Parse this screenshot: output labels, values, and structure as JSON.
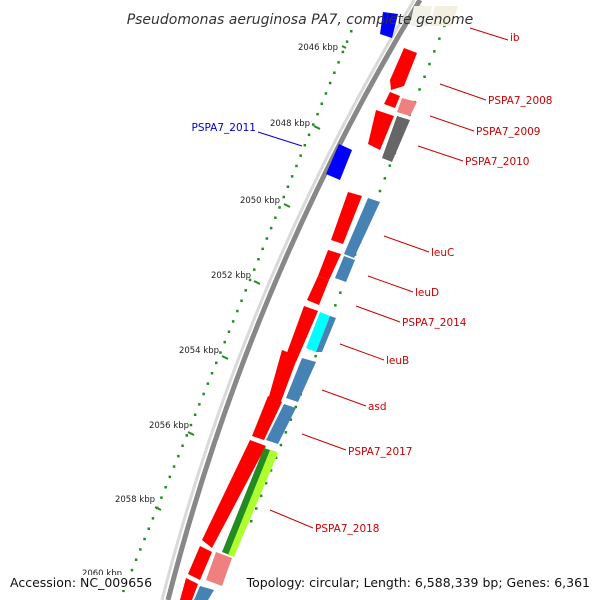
{
  "title": "Pseudomonas aeruginosa PA7, complete genome",
  "accession_text": "Accession: NC_009656",
  "summary_text": "Topology: circular; Length: 6,588,339 bp; Genes: 6,361",
  "ticks": [
    {
      "label": "2046 kbp"
    },
    {
      "label": "2048 kbp"
    },
    {
      "label": "2050 kbp"
    },
    {
      "label": "2052 kbp"
    },
    {
      "label": "2054 kbp"
    },
    {
      "label": "2056 kbp"
    },
    {
      "label": "2058 kbp"
    },
    {
      "label": "2060 kbp"
    }
  ],
  "gene_labels": [
    {
      "text": "ib",
      "color": "#cc0000"
    },
    {
      "text": "PSPA7_2008",
      "color": "#cc0000"
    },
    {
      "text": "PSPA7_2009",
      "color": "#cc0000"
    },
    {
      "text": "PSPA7_2010",
      "color": "#cc0000"
    },
    {
      "text": "PSPA7_2011",
      "color": "#0000cc"
    },
    {
      "text": "leuC",
      "color": "#cc0000"
    },
    {
      "text": "leuD",
      "color": "#cc0000"
    },
    {
      "text": "PSPA7_2014",
      "color": "#cc0000"
    },
    {
      "text": "leuB",
      "color": "#cc0000"
    },
    {
      "text": "asd",
      "color": "#cc0000"
    },
    {
      "text": "PSPA7_2017",
      "color": "#cc0000"
    },
    {
      "text": "PSPA7_2018",
      "color": "#cc0000"
    }
  ],
  "colors": {
    "cds_forward": "#ff0000",
    "cds_reverse": "#0000ff",
    "feature_light_red": "#f08080",
    "feature_steel_blue": "#4682b4",
    "feature_gray": "#666666",
    "feature_cyan": "#00ffff",
    "feature_green": "#228b22",
    "feature_yellowgreen": "#adff2f",
    "backbone": "#888888",
    "dots": "#228b22"
  }
}
